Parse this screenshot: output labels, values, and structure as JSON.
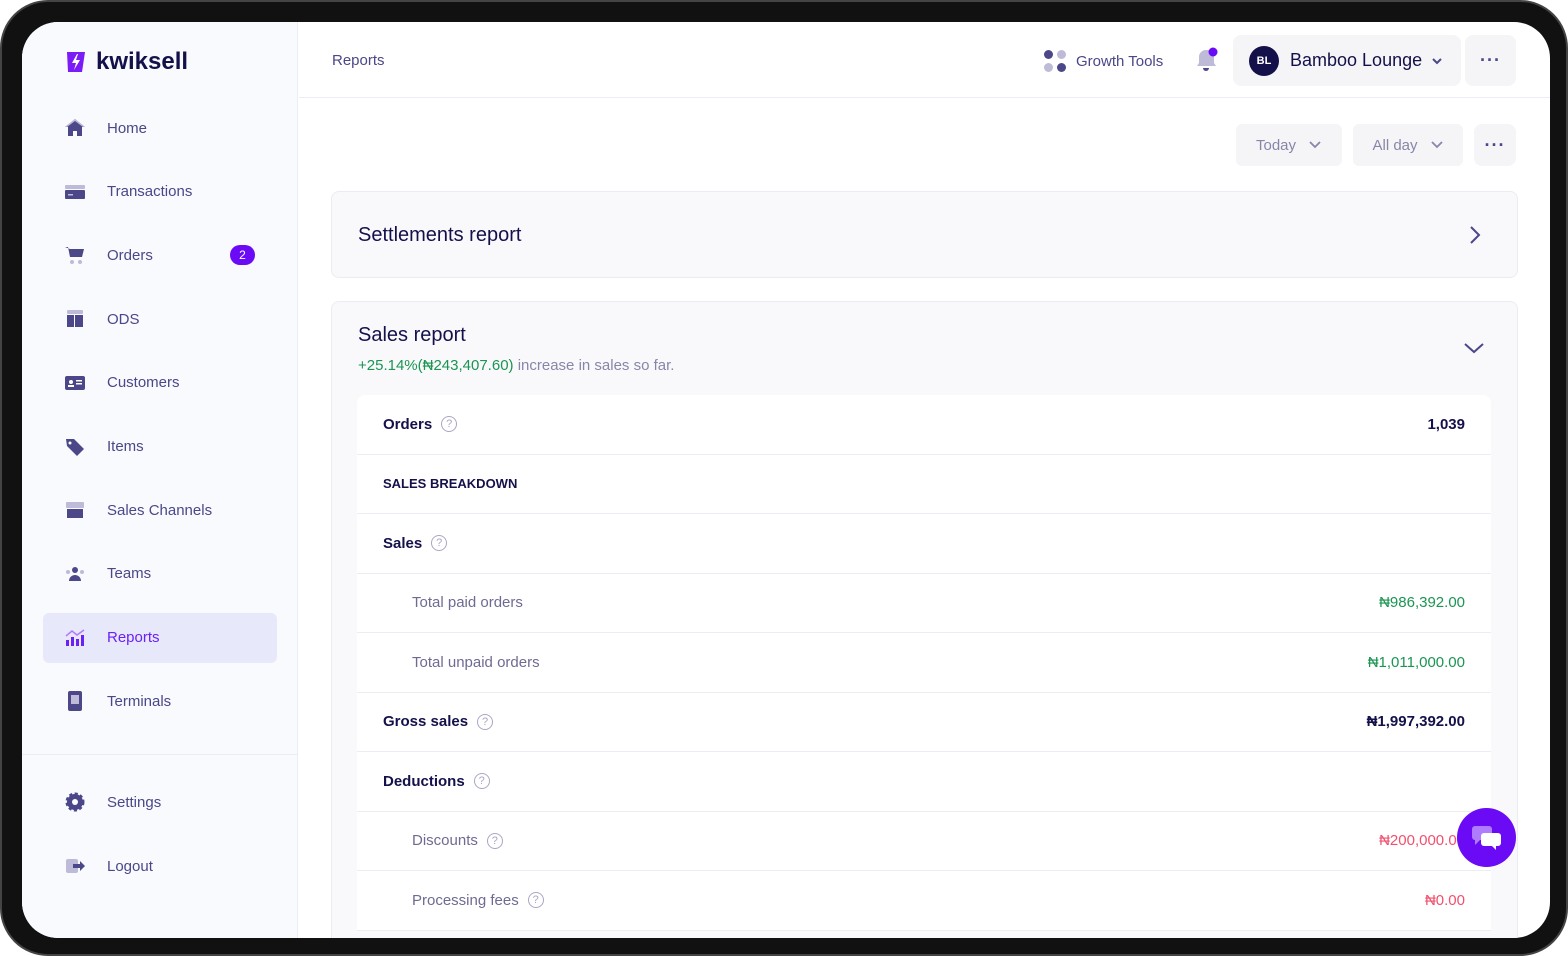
{
  "brand": {
    "name": "kwiksell",
    "accent": "#6b0af5"
  },
  "sidebar": {
    "items": [
      {
        "label": "Home",
        "icon": "home-icon"
      },
      {
        "label": "Transactions",
        "icon": "card-icon"
      },
      {
        "label": "Orders",
        "icon": "cart-icon",
        "badge": "2"
      },
      {
        "label": "ODS",
        "icon": "ods-icon"
      },
      {
        "label": "Customers",
        "icon": "id-card-icon"
      },
      {
        "label": "Items",
        "icon": "tag-icon"
      },
      {
        "label": "Sales  Channels",
        "icon": "store-icon"
      },
      {
        "label": "Teams",
        "icon": "users-icon"
      },
      {
        "label": "Reports",
        "icon": "chart-icon",
        "active": true
      },
      {
        "label": "Terminals",
        "icon": "terminal-icon"
      }
    ],
    "bottom": [
      {
        "label": "Settings",
        "icon": "gear-icon"
      },
      {
        "label": "Logout",
        "icon": "logout-icon"
      }
    ]
  },
  "header": {
    "breadcrumb": "Reports",
    "growth_tools": "Growth Tools",
    "account_initials": "BL",
    "account_name": "Bamboo Lounge"
  },
  "filters": {
    "date": "Today",
    "time": "All day"
  },
  "settlements": {
    "title": "Settlements report"
  },
  "sales": {
    "title": "Sales report",
    "change": "+25.14%(₦243,407.60)",
    "change_text": " increase in sales so far.",
    "rows": [
      {
        "label": "Orders",
        "help": true,
        "value": "1,039",
        "type": "main"
      },
      {
        "label": "SALES BREAKDOWN",
        "type": "cap"
      },
      {
        "label": "Sales",
        "help": true,
        "type": "main"
      },
      {
        "label": "Total paid orders",
        "value": "₦986,392.00",
        "type": "sub",
        "color": "green"
      },
      {
        "label": "Total unpaid orders",
        "value": "₦1,011,000.00",
        "type": "sub",
        "color": "green"
      },
      {
        "label": "Gross sales",
        "help": true,
        "value": "₦1,997,392.00",
        "type": "main"
      },
      {
        "label": "Deductions",
        "help": true,
        "type": "main"
      },
      {
        "label": "Discounts",
        "help": true,
        "value": "₦200,000.00",
        "type": "sub",
        "color": "red"
      },
      {
        "label": "Processing fees",
        "help": true,
        "value": "₦0.00",
        "type": "sub",
        "color": "red"
      }
    ]
  }
}
